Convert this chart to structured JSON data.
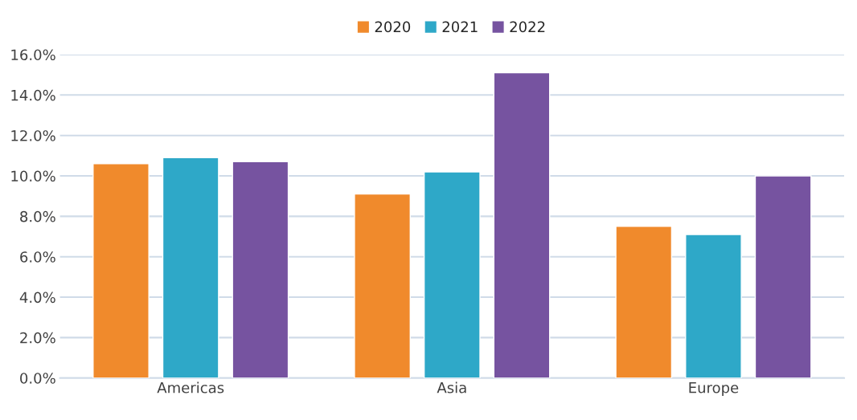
{
  "chart_data": {
    "type": "bar",
    "categories": [
      "Americas",
      "Asia",
      "Europe"
    ],
    "series": [
      {
        "name": "2020",
        "color": "#f08a2c",
        "values": [
          10.6,
          9.1,
          7.5
        ]
      },
      {
        "name": "2021",
        "color": "#2ea8c8",
        "values": [
          10.9,
          10.2,
          7.1
        ]
      },
      {
        "name": "2022",
        "color": "#7653a0",
        "values": [
          10.7,
          15.1,
          10.0
        ]
      }
    ],
    "ylim": [
      0,
      16
    ],
    "yticks": [
      {
        "value": 0,
        "label": "0.0%"
      },
      {
        "value": 2,
        "label": "2.0%"
      },
      {
        "value": 4,
        "label": "4.0%"
      },
      {
        "value": 6,
        "label": "6.0%"
      },
      {
        "value": 8,
        "label": "8.0%"
      },
      {
        "value": 10,
        "label": "10.0%"
      },
      {
        "value": 12,
        "label": "12.0%"
      },
      {
        "value": 14,
        "label": "14.0%"
      },
      {
        "value": 16,
        "label": "16.0%"
      }
    ],
    "grid": "y",
    "legend": "top"
  }
}
